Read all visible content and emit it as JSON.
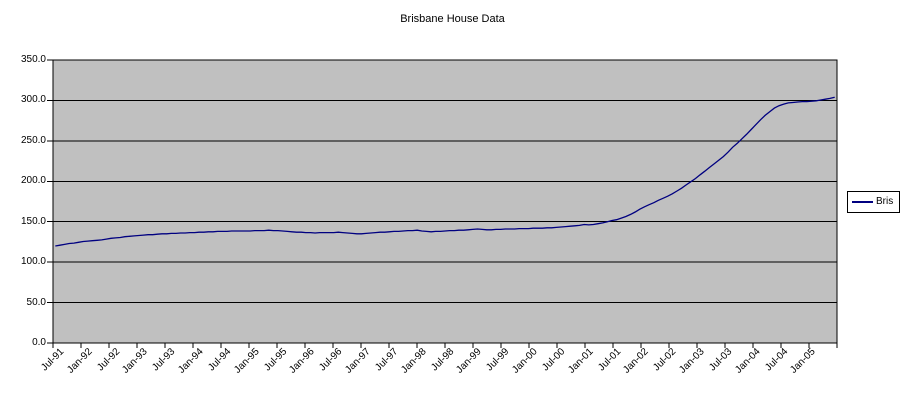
{
  "title": "Brisbane House Data",
  "legend": {
    "series_label": "Bris"
  },
  "colors": {
    "line": "#000080",
    "plot_background": "#C0C0C0",
    "gridline": "#000000",
    "axis": "#000000",
    "text": "#000000",
    "chart_background": "#FFFFFF",
    "legend_background": "#FFFFFF"
  },
  "chart_data": {
    "type": "line",
    "title": "Brisbane House Data",
    "x_frequency": "monthly",
    "x_range": [
      "Jul-91",
      "Jul-05"
    ],
    "x_tick_labels": [
      "Jul-91",
      "Jan-92",
      "Jul-92",
      "Jan-93",
      "Jul-93",
      "Jan-94",
      "Jul-94",
      "Jan-95",
      "Jul-95",
      "Jan-96",
      "Jul-96",
      "Jan-97",
      "Jul-97",
      "Jan-98",
      "Jul-98",
      "Jan-99",
      "Jul-99",
      "Jan-00",
      "Jul-00",
      "Jan-01",
      "Jul-01",
      "Jan-02",
      "Jul-02",
      "Jan-03",
      "Jul-03",
      "Jan-04",
      "Jul-04",
      "Jan-05"
    ],
    "x_label_every_n_points": 6,
    "y_tick_labels": [
      "350.0",
      "300.0",
      "250.0",
      "200.0",
      "150.0",
      "100.0",
      "50.0",
      "0.0"
    ],
    "ylim": [
      0,
      350
    ],
    "y_tick_step": 50,
    "grid": true,
    "legend_position": "right",
    "series": [
      {
        "name": "Bris",
        "color": "#000080",
        "values": [
          120,
          121,
          122,
          123,
          123.5,
          124.5,
          125.5,
          126,
          126.5,
          127,
          127.5,
          128.5,
          129.5,
          130,
          130.5,
          131.5,
          132,
          132.5,
          133,
          133.5,
          134,
          134,
          134.5,
          135,
          135,
          135.5,
          135.5,
          136,
          136,
          136.5,
          136.5,
          137,
          137,
          137.5,
          137.5,
          138,
          138,
          138,
          138.5,
          138.5,
          138.5,
          138.5,
          138.5,
          139,
          139,
          139,
          139.5,
          139,
          139,
          138.5,
          138,
          137.5,
          137,
          137,
          136.5,
          136.5,
          136,
          136.5,
          136.5,
          136.5,
          136.5,
          137,
          136.5,
          136,
          135.5,
          135,
          135,
          135.5,
          136,
          136.5,
          137,
          137,
          137.5,
          138,
          138,
          138.5,
          139,
          139,
          139.5,
          138.5,
          138,
          137.5,
          138,
          138,
          138.5,
          139,
          139,
          139.5,
          139.5,
          140,
          140.5,
          141,
          140.5,
          140,
          140,
          140.5,
          140.5,
          141,
          141,
          141,
          141.5,
          141.5,
          141.5,
          142,
          142,
          142,
          142.5,
          142.5,
          143,
          143.5,
          144,
          144.5,
          145,
          145.5,
          146.5,
          146,
          146.5,
          147.5,
          148.5,
          150,
          151.5,
          152.5,
          154.5,
          156.5,
          159,
          162,
          165.5,
          168.5,
          171,
          173.5,
          176.5,
          179,
          181.5,
          184.5,
          188,
          191.5,
          195.5,
          199.5,
          203.5,
          208,
          212.5,
          217,
          221.5,
          226,
          230.5,
          236,
          242,
          247,
          252.5,
          258,
          264,
          270,
          276,
          281.5,
          286,
          290.5,
          293.5,
          295.5,
          297,
          297.5,
          298,
          298.5,
          298.5,
          299,
          299.5,
          300.5,
          301.5,
          302.5,
          304
        ]
      }
    ]
  }
}
